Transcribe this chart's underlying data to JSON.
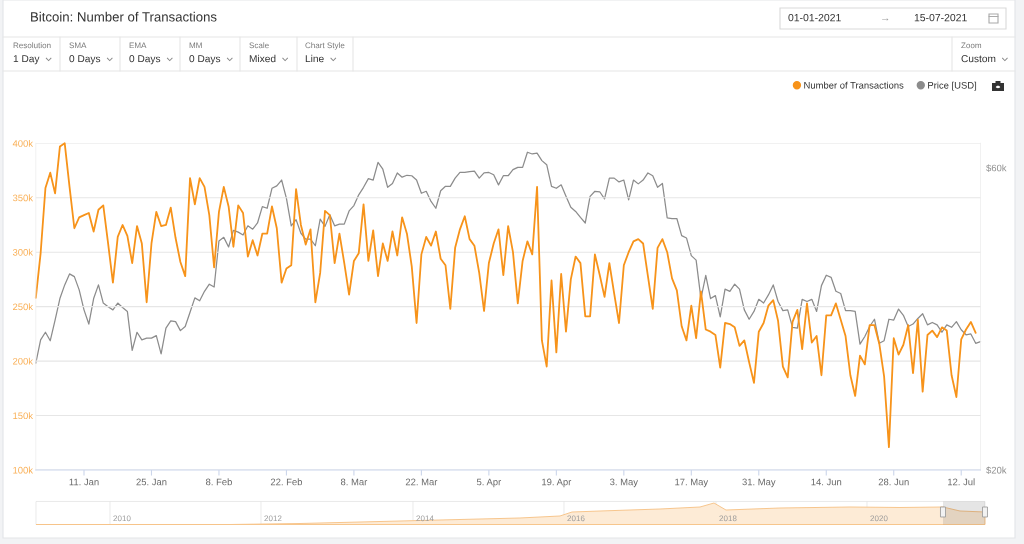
{
  "chart_data": {
    "type": "line",
    "title": "Bitcoin: Number of Transactions",
    "x": [
      "2021-01-01",
      "2021-01-02",
      "2021-01-03",
      "2021-01-04",
      "2021-01-05",
      "2021-01-06",
      "2021-01-07",
      "2021-01-08",
      "2021-01-09",
      "2021-01-10",
      "2021-01-11",
      "2021-01-12",
      "2021-01-13",
      "2021-01-14",
      "2021-01-15",
      "2021-01-16",
      "2021-01-17",
      "2021-01-18",
      "2021-01-19",
      "2021-01-20",
      "2021-01-21",
      "2021-01-22",
      "2021-01-23",
      "2021-01-24",
      "2021-01-25",
      "2021-01-26",
      "2021-01-27",
      "2021-01-28",
      "2021-01-29",
      "2021-01-30",
      "2021-01-31",
      "2021-02-01",
      "2021-02-02",
      "2021-02-03",
      "2021-02-04",
      "2021-02-05",
      "2021-02-06",
      "2021-02-07",
      "2021-02-08",
      "2021-02-09",
      "2021-02-10",
      "2021-02-11",
      "2021-02-12",
      "2021-02-13",
      "2021-02-14",
      "2021-02-15",
      "2021-02-16",
      "2021-02-17",
      "2021-02-18",
      "2021-02-19",
      "2021-02-20",
      "2021-02-21",
      "2021-02-22",
      "2021-02-23",
      "2021-02-24",
      "2021-02-25",
      "2021-02-26",
      "2021-02-27",
      "2021-02-28",
      "2021-03-01",
      "2021-03-02",
      "2021-03-03",
      "2021-03-04",
      "2021-03-05",
      "2021-03-06",
      "2021-03-07",
      "2021-03-08",
      "2021-03-09",
      "2021-03-10",
      "2021-03-11",
      "2021-03-12",
      "2021-03-13",
      "2021-03-14",
      "2021-03-15",
      "2021-03-16",
      "2021-03-17",
      "2021-03-18",
      "2021-03-19",
      "2021-03-20",
      "2021-03-21",
      "2021-03-22",
      "2021-03-23",
      "2021-03-24",
      "2021-03-25",
      "2021-03-26",
      "2021-03-27",
      "2021-03-28",
      "2021-03-29",
      "2021-03-30",
      "2021-03-31",
      "2021-04-01",
      "2021-04-02",
      "2021-04-03",
      "2021-04-04",
      "2021-04-05",
      "2021-04-06",
      "2021-04-07",
      "2021-04-08",
      "2021-04-09",
      "2021-04-10",
      "2021-04-11",
      "2021-04-12",
      "2021-04-13",
      "2021-04-14",
      "2021-04-15",
      "2021-04-16",
      "2021-04-17",
      "2021-04-18",
      "2021-04-19",
      "2021-04-20",
      "2021-04-21",
      "2021-04-22",
      "2021-04-23",
      "2021-04-24",
      "2021-04-25",
      "2021-04-26",
      "2021-04-27",
      "2021-04-28",
      "2021-04-29",
      "2021-04-30",
      "2021-05-01",
      "2021-05-02",
      "2021-05-03",
      "2021-05-04",
      "2021-05-05",
      "2021-05-06",
      "2021-05-07",
      "2021-05-08",
      "2021-05-09",
      "2021-05-10",
      "2021-05-11",
      "2021-05-12",
      "2021-05-13",
      "2021-05-14",
      "2021-05-15",
      "2021-05-16",
      "2021-05-17",
      "2021-05-18",
      "2021-05-19",
      "2021-05-20",
      "2021-05-21",
      "2021-05-22",
      "2021-05-23",
      "2021-05-24",
      "2021-05-25",
      "2021-05-26",
      "2021-05-27",
      "2021-05-28",
      "2021-05-29",
      "2021-05-30",
      "2021-05-31",
      "2021-06-01",
      "2021-06-02",
      "2021-06-03",
      "2021-06-04",
      "2021-06-05",
      "2021-06-06",
      "2021-06-07",
      "2021-06-08",
      "2021-06-09",
      "2021-06-10",
      "2021-06-11",
      "2021-06-12",
      "2021-06-13",
      "2021-06-14",
      "2021-06-15",
      "2021-06-16",
      "2021-06-17",
      "2021-06-18",
      "2021-06-19",
      "2021-06-20",
      "2021-06-21",
      "2021-06-22",
      "2021-06-23",
      "2021-06-24",
      "2021-06-25",
      "2021-06-26",
      "2021-06-27",
      "2021-06-28",
      "2021-06-29",
      "2021-06-30",
      "2021-07-01",
      "2021-07-02",
      "2021-07-03",
      "2021-07-04",
      "2021-07-05",
      "2021-07-06",
      "2021-07-07",
      "2021-07-08",
      "2021-07-09",
      "2021-07-10",
      "2021-07-11",
      "2021-07-12",
      "2021-07-13",
      "2021-07-14",
      "2021-07-15",
      "2021-07-16"
    ],
    "series": [
      {
        "name": "Number of Transactions",
        "color": "#f7931a",
        "values": [
          258000,
          299000,
          359000,
          373000,
          354000,
          397000,
          400000,
          360000,
          322000,
          332000,
          334000,
          336000,
          319000,
          339000,
          343000,
          308000,
          272000,
          314000,
          325000,
          315000,
          290000,
          324000,
          308000,
          254000,
          308000,
          337000,
          324000,
          325000,
          341000,
          313000,
          291000,
          278000,
          368000,
          344000,
          368000,
          360000,
          334000,
          286000,
          337000,
          360000,
          342000,
          305000,
          343000,
          336000,
          296000,
          311000,
          297000,
          317000,
          317000,
          342000,
          322000,
          272000,
          285000,
          288000,
          358000,
          325000,
          307000,
          321000,
          254000,
          281000,
          338000,
          334000,
          290000,
          317000,
          290000,
          261000,
          292000,
          299000,
          344000,
          292000,
          320000,
          278000,
          308000,
          292000,
          319000,
          297000,
          332000,
          317000,
          287000,
          235000,
          298000,
          314000,
          306000,
          319000,
          294000,
          288000,
          248000,
          304000,
          321000,
          333000,
          312000,
          306000,
          281000,
          246000,
          290000,
          308000,
          321000,
          279000,
          324000,
          300000,
          253000,
          292000,
          310000,
          298000,
          360000,
          219000,
          195000,
          274000,
          208000,
          280000,
          227000,
          275000,
          296000,
          290000,
          241000,
          241000,
          298000,
          279000,
          259000,
          290000,
          262000,
          235000,
          288000,
          300000,
          310000,
          312000,
          308000,
          278000,
          248000,
          304000,
          312000,
          300000,
          276000,
          265000,
          232000,
          219000,
          251000,
          221000,
          264000,
          229000,
          227000,
          224000,
          194000,
          235000,
          234000,
          231000,
          214000,
          219000,
          199000,
          180000,
          227000,
          235000,
          251000,
          256000,
          237000,
          195000,
          185000,
          236000,
          247000,
          211000,
          253000,
          217000,
          223000,
          187000,
          242000,
          242000,
          253000,
          238000,
          223000,
          187000,
          168000,
          205000,
          197000,
          233000,
          233000,
          216000,
          186000,
          121000,
          221000,
          206000,
          215000,
          233000,
          189000,
          238000,
          172000,
          224000,
          228000,
          222000,
          231000,
          228000,
          187000,
          167000,
          220000,
          229000,
          236000,
          226000,
          null
        ]
      },
      {
        "name": "Price [USD]",
        "color": "#8c8c8c",
        "axis": "y2",
        "values": [
          29500,
          32100,
          33000,
          32000,
          34500,
          37300,
          39200,
          40800,
          40400,
          38500,
          35800,
          34000,
          37300,
          39200,
          36700,
          36200,
          35800,
          36700,
          36100,
          35600,
          30900,
          33000,
          32100,
          32300,
          32300,
          32600,
          30500,
          33500,
          34400,
          34300,
          33200,
          33700,
          35500,
          37400,
          37000,
          38300,
          39300,
          38900,
          46000,
          46600,
          45000,
          47800,
          47500,
          47000,
          48600,
          48000,
          49100,
          52100,
          51800,
          55700,
          56200,
          57400,
          53700,
          48600,
          49700,
          47300,
          46300,
          46300,
          45200,
          49800,
          48500,
          50600,
          48600,
          48900,
          48900,
          51300,
          52300,
          54400,
          55900,
          57700,
          57400,
          61200,
          59700,
          55900,
          56700,
          58900,
          58000,
          58400,
          58300,
          57400,
          54700,
          55100,
          53100,
          51800,
          55200,
          56100,
          56100,
          57800,
          59000,
          59000,
          59200,
          59300,
          57800,
          58900,
          59000,
          58500,
          56400,
          58300,
          58300,
          59600,
          60100,
          60100,
          63500,
          63100,
          63300,
          61600,
          60700,
          56100,
          55700,
          56400,
          54100,
          52000,
          51200,
          50100,
          49100,
          54100,
          55100,
          55000,
          53600,
          57800,
          57800,
          57000,
          57400,
          53400,
          57400,
          56600,
          57400,
          58900,
          58300,
          55900,
          56700,
          50000,
          49900,
          49900,
          46900,
          46500,
          43600,
          42900,
          37300,
          40600,
          37300,
          37700,
          34900,
          38600,
          38300,
          39300,
          38600,
          35800,
          34600,
          35600,
          37200,
          36700,
          37800,
          39200,
          36900,
          35700,
          35800,
          33600,
          33500,
          37200,
          36900,
          37200,
          35600,
          39100,
          40600,
          40300,
          38300,
          38000,
          35700,
          35700,
          35600,
          31600,
          32500,
          33700,
          34600,
          31700,
          32000,
          34600,
          34500,
          35900,
          35100,
          33700,
          34000,
          34700,
          35300,
          33900,
          34200,
          33900,
          33000,
          33900,
          33600,
          34300,
          33300,
          32700,
          32800,
          31700,
          31900
        ]
      }
    ],
    "xlim": [
      "2021-01-01",
      "2021-07-16"
    ],
    "xticks": [
      {
        "value": "2021-01-11",
        "label": "11. Jan"
      },
      {
        "value": "2021-01-25",
        "label": "25. Jan"
      },
      {
        "value": "2021-02-08",
        "label": "8. Feb"
      },
      {
        "value": "2021-02-22",
        "label": "22. Feb"
      },
      {
        "value": "2021-03-08",
        "label": "8. Mar"
      },
      {
        "value": "2021-03-22",
        "label": "22. Mar"
      },
      {
        "value": "2021-04-05",
        "label": "5. Apr"
      },
      {
        "value": "2021-04-19",
        "label": "19. Apr"
      },
      {
        "value": "2021-05-03",
        "label": "3. May"
      },
      {
        "value": "2021-05-17",
        "label": "17. May"
      },
      {
        "value": "2021-05-31",
        "label": "31. May"
      },
      {
        "value": "2021-06-14",
        "label": "14. Jun"
      },
      {
        "value": "2021-06-28",
        "label": "28. Jun"
      },
      {
        "value": "2021-07-12",
        "label": "12. Jul"
      }
    ],
    "ylim": [
      100000,
      400000
    ],
    "yticks": [
      {
        "value": 100000,
        "label": "100k"
      },
      {
        "value": 150000,
        "label": "150k"
      },
      {
        "value": 200000,
        "label": "200k"
      },
      {
        "value": 250000,
        "label": "250k"
      },
      {
        "value": 300000,
        "label": "300k"
      },
      {
        "value": 350000,
        "label": "350k"
      },
      {
        "value": 400000,
        "label": "400k"
      }
    ],
    "y2lim": [
      20000,
      65600
    ],
    "y2ticks": [
      {
        "value": 20000,
        "label": "$20k"
      },
      {
        "value": 60000,
        "label": "$60k"
      }
    ],
    "log": "y2",
    "grid": "y",
    "legend": "top right",
    "line_style": "solid",
    "annotations": [
      "01-01-2021",
      "→",
      "15-07-2021",
      "Resolution",
      "1 Day",
      "SMA",
      "0 Days",
      "EMA",
      "0 Days",
      "MM",
      "0 Days",
      "Scale",
      "Mixed",
      "Chart Style",
      "Line",
      "Zoom",
      "Custom",
      "2010",
      "2012",
      "2014",
      "2016",
      "2018",
      "2020"
    ]
  }
}
